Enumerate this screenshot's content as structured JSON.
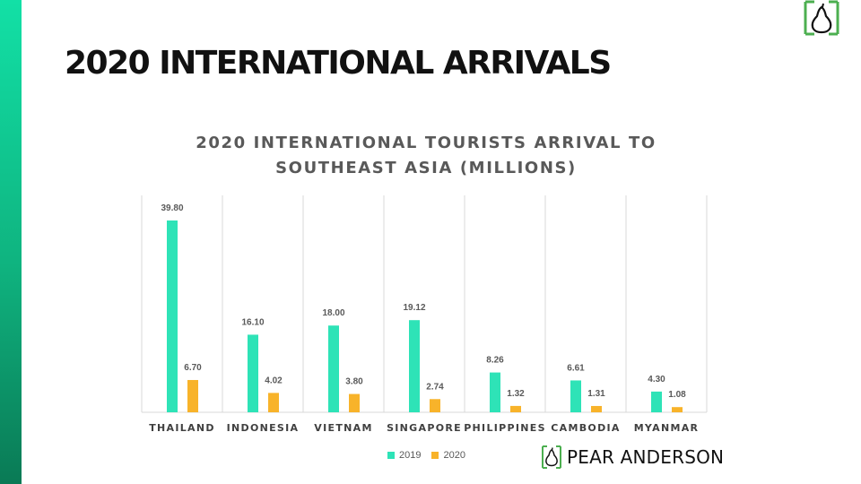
{
  "slide": {
    "title": "2020 INTERNATIONAL ARRIVALS",
    "brand_name": "PEAR ANDERSON"
  },
  "colors": {
    "accent_green": "#12e0a6",
    "series_2019": "#2ee3b7",
    "series_2020": "#f8b32a",
    "logo_green": "#4caf50"
  },
  "chart_data": {
    "type": "bar",
    "title_lines": [
      "2020 INTERNATIONAL TOURISTS ARRIVAL TO",
      "SOUTHEAST ASIA (MILLIONS)"
    ],
    "categories": [
      "THAILAND",
      "INDONESIA",
      "VIETNAM",
      "SINGAPORE",
      "PHILIPPINES",
      "CAMBODIA",
      "MYANMAR"
    ],
    "series": [
      {
        "name": "2019",
        "values": [
          39.8,
          16.1,
          18.0,
          19.12,
          8.26,
          6.61,
          4.3
        ],
        "labels": [
          "39.80",
          "16.10",
          "18.00",
          "19.12",
          "8.26",
          "6.61",
          "4.30"
        ]
      },
      {
        "name": "2020",
        "values": [
          6.7,
          4.02,
          3.8,
          2.74,
          1.32,
          1.31,
          1.08
        ],
        "labels": [
          "6.70",
          "4.02",
          "3.80",
          "2.74",
          "1.32",
          "1.31",
          "1.08"
        ]
      }
    ],
    "ylim": [
      0,
      45
    ],
    "gridlines": "vertical category separators",
    "legend_position": "bottom"
  }
}
